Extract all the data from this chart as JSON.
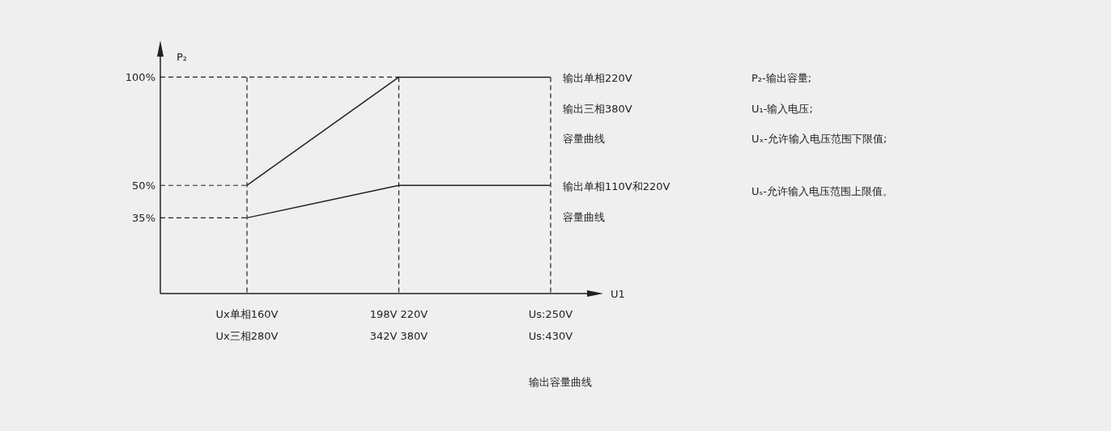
{
  "chart_data": {
    "type": "line",
    "title": "输出容量曲线",
    "xlabel": "U1",
    "ylabel": "P₂",
    "categories": [
      "Ux单相160V\nUx三相280V",
      "198V 220V\n342V 380V",
      "Us:250V\nUs:430V"
    ],
    "series": [
      {
        "name": "输出单相220V\n输出三相380V\n容量曲线",
        "color": "#222222",
        "values": [
          50,
          100,
          100
        ]
      },
      {
        "name": "输出单相110V和220V\n容量曲线",
        "color": "#222222",
        "values": [
          35,
          50,
          50
        ]
      }
    ],
    "ylim": [
      0,
      114
    ],
    "yticks": [
      {
        "value": 35,
        "label": "35%"
      },
      {
        "value": 50,
        "label": "50%"
      },
      {
        "value": 100,
        "label": "100%"
      }
    ],
    "ref_lines": [
      {
        "axis": "y",
        "value": 100,
        "line_style": "dashed"
      },
      {
        "axis": "y",
        "value": 50,
        "line_style": "dashed"
      },
      {
        "axis": "y",
        "value": 35,
        "line_style": "dashed"
      }
    ],
    "grid": "x",
    "line_style": "solid",
    "marker": "none",
    "annotations": [
      "P₂-输出容量;",
      "U₁-输入电压;",
      "Uₓ-允许输入电压范围下限值;",
      "Uₛ-允许输入电压范围上限值。"
    ]
  }
}
